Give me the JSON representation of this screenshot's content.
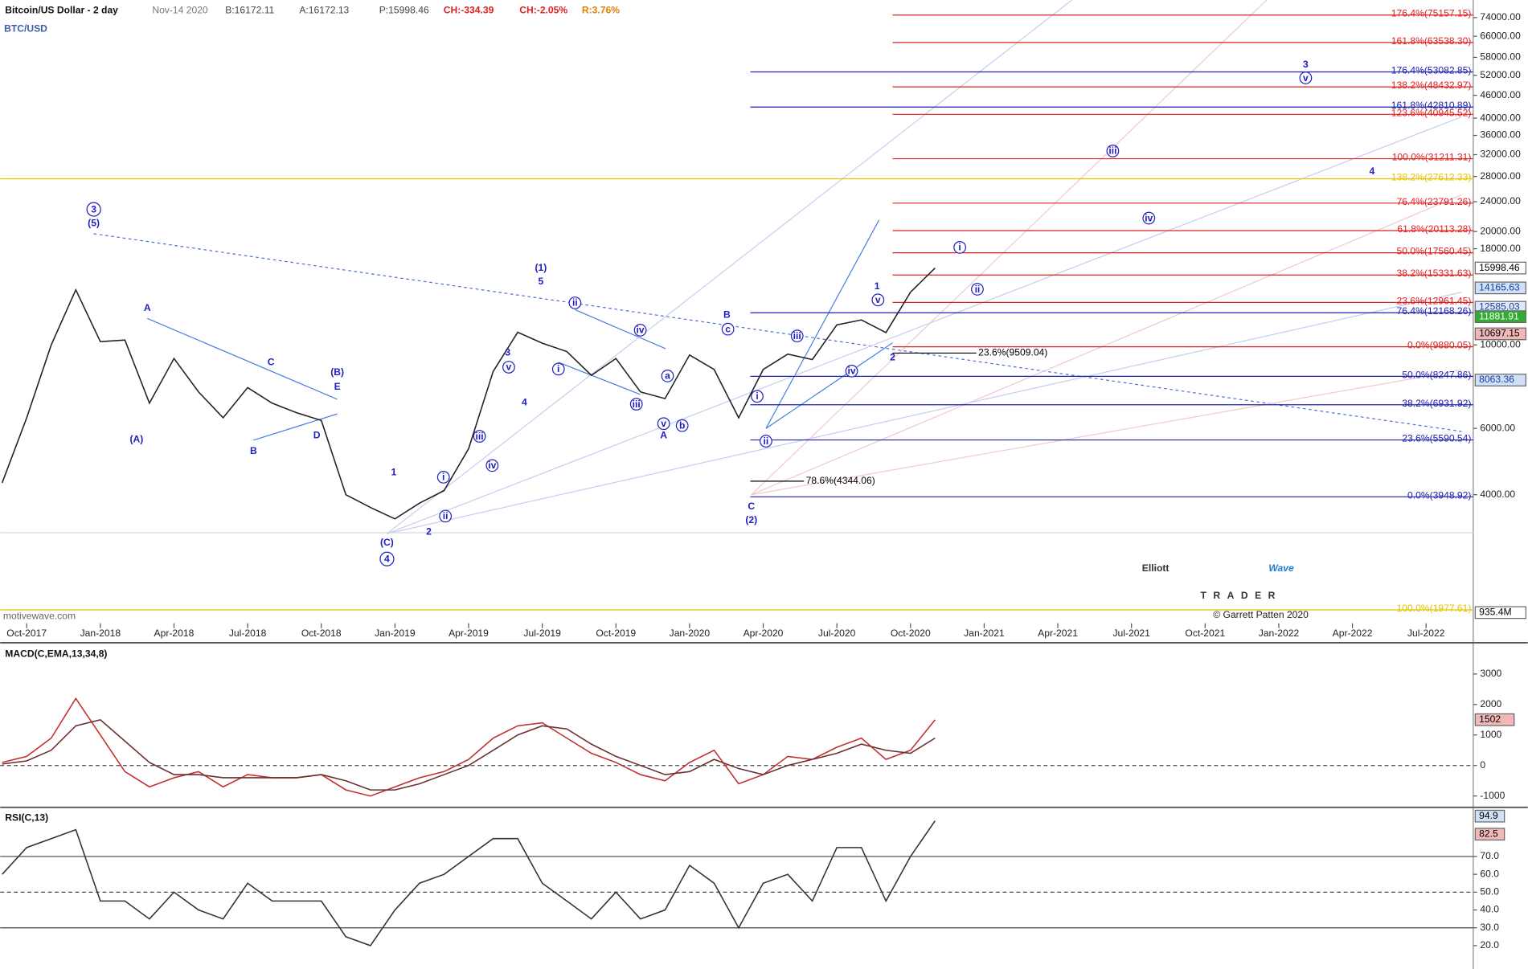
{
  "header": {
    "instrument": "Bitcoin/US Dollar - 2 day",
    "date": "Nov-14 2020",
    "bid": "B:16172.11",
    "ask": "A:16172.13",
    "price": "P:15998.46",
    "change": "CH:-334.39",
    "change_pct": "CH:-2.05%",
    "range": "R:3.76%",
    "symbol": "BTC/USD"
  },
  "watermark": {
    "site": "motivewave.com",
    "logo_word1": "Elliott",
    "logo_word2": "Wave",
    "logo_word3": "TRADER",
    "copyright": "© Garrett Patten 2020"
  },
  "chart_data": [
    {
      "type": "line",
      "log_scale": true,
      "categories": [
        null,
        "Oct-2017",
        null,
        null,
        "Jan-2018",
        null,
        null,
        "Apr-2018",
        null,
        null,
        "Jul-2018",
        null,
        null,
        "Oct-2018",
        null,
        null,
        "Jan-2019",
        null,
        null,
        "Apr-2019",
        null,
        null,
        "Jul-2019",
        null,
        null,
        "Oct-2019",
        null,
        null,
        "Jan-2020",
        null,
        null,
        "Apr-2020",
        null,
        null,
        "Jul-2020",
        null,
        null,
        "Oct-2020",
        null,
        null,
        "Jan-2021",
        null,
        null,
        "Apr-2021",
        null,
        null,
        "Jul-2021",
        null,
        null,
        "Oct-2021",
        null,
        null,
        "Jan-2022",
        null,
        null,
        "Apr-2022",
        null,
        null,
        "Jul-2022",
        null,
        null
      ],
      "series": [
        {
          "color": "#222222",
          "values": [
            4300,
            6400,
            10000,
            14000,
            10200,
            10300,
            7000,
            9200,
            7500,
            6400,
            7700,
            7000,
            6600,
            6300,
            4000,
            3700,
            3450,
            3800,
            4100,
            5300,
            8500,
            10800,
            10100,
            9600,
            8300,
            9200,
            7500,
            7200,
            9400,
            8600,
            6400,
            8600,
            9450,
            9140,
            11300,
            11650,
            10780,
            13800,
            16000,
            null,
            null,
            null,
            null,
            null,
            null,
            null,
            null,
            null,
            null,
            null,
            null,
            null,
            null,
            null,
            null,
            null,
            null,
            null,
            null,
            null,
            null
          ]
        }
      ],
      "ylim": [
        1822,
        82400
      ],
      "yticks": [
        {
          "value": 74000,
          "label": "74000.00"
        },
        {
          "value": 66000,
          "label": "66000.00"
        },
        {
          "value": 58000,
          "label": "58000.00"
        },
        {
          "value": 52000,
          "label": "52000.00"
        },
        {
          "value": 46000,
          "label": "46000.00"
        },
        {
          "value": 40000,
          "label": "40000.00"
        },
        {
          "value": 36000,
          "label": "36000.00"
        },
        {
          "value": 32000,
          "label": "32000.00"
        },
        {
          "value": 28000,
          "label": "28000.00"
        },
        {
          "value": 24000,
          "label": "24000.00"
        },
        {
          "value": 20000,
          "label": "20000.00"
        },
        {
          "value": 18000,
          "label": "18000.00"
        },
        {
          "value": 10000,
          "label": "10000.00"
        },
        {
          "value": 6000,
          "label": "6000.00"
        },
        {
          "value": 4000,
          "label": "4000.00"
        }
      ],
      "grid": false,
      "price_tags": [
        {
          "value": 15998.46,
          "bg": "#ffffff",
          "color": "#000000"
        },
        {
          "value": 14165.63,
          "bg": "#cfe0f7",
          "color": "#1a3d9a"
        },
        {
          "value": 12585.03,
          "bg": "#dfe9fb",
          "color": "#1a3d9a"
        },
        {
          "value": 11881.91,
          "bg": "#33aa33",
          "color": "#ffffff"
        },
        {
          "value": 10697.15,
          "bg": "#f2b8b8",
          "color": "#000000"
        },
        {
          "value": 8063.36,
          "bg": "#cfe0f7",
          "color": "#1a3d9a"
        }
      ],
      "volume_tag": "935.4M",
      "fib_levels": [
        {
          "value": 75157.15,
          "label": "176.4%(75157.15)",
          "color": "#e02020"
        },
        {
          "value": 63538.3,
          "label": "161.8%(63538.30)",
          "color": "#e02020"
        },
        {
          "value": 53082.85,
          "label": "176.4%(53082.85)",
          "color": "#2020b0"
        },
        {
          "value": 48432.97,
          "label": "138.2%(48432.97)",
          "color": "#e02020"
        },
        {
          "value": 42810.89,
          "label": "161.8%(42810.89)",
          "color": "#2020b0"
        },
        {
          "value": 40945.52,
          "label": "123.6%(40945.52)",
          "color": "#e02020"
        },
        {
          "value": 31211.31,
          "label": "100.0%(31211.31)",
          "color": "#e02020"
        },
        {
          "value": 27612.33,
          "label": "138.2%(27612.33)",
          "color": "#e6c200"
        },
        {
          "value": 23791.26,
          "label": "76.4%(23791.26)",
          "color": "#e02020"
        },
        {
          "value": 20113.28,
          "label": "61.8%(20113.28)",
          "color": "#e02020"
        },
        {
          "value": 17560.45,
          "label": "50.0%(17560.45)",
          "color": "#e02020"
        },
        {
          "value": 15331.63,
          "label": "38.2%(15331.63)",
          "color": "#e02020"
        },
        {
          "value": 12961.45,
          "label": "23.6%(12961.45)",
          "color": "#e02020"
        },
        {
          "value": 12168.26,
          "label": "76.4%(12168.26)",
          "color": "#2020b0"
        },
        {
          "value": 9880.05,
          "label": "0.0%(9880.05)",
          "color": "#e02020"
        },
        {
          "value": 9509.04,
          "label": "23.6%(9509.04)",
          "color": "#000000"
        },
        {
          "value": 8247.86,
          "label": "50.0%(8247.86)",
          "color": "#2020b0"
        },
        {
          "value": 6931.92,
          "label": "38.2%(6931.92)",
          "color": "#2020b0"
        },
        {
          "value": 5590.54,
          "label": "23.6%(5590.54)",
          "color": "#2020b0"
        },
        {
          "value": 4344.06,
          "label": "78.6%(4344.06)",
          "color": "#000000"
        },
        {
          "value": 3948.92,
          "label": "0.0%(3948.92)",
          "color": "#2020b0"
        },
        {
          "value": 1977.61,
          "label": "100.0%(1977.61)",
          "color": "#e6c200"
        }
      ],
      "wave_labels": [
        "3",
        "(5)",
        "A",
        "(A)",
        "B",
        "C",
        "D",
        "E",
        "(B)",
        "(C)",
        "4",
        "1",
        "2",
        "i",
        "ii",
        "iii",
        "iv",
        "v",
        "3",
        "4",
        "(1)",
        "5",
        "i",
        "ii",
        "iii",
        "iv",
        "a",
        "v",
        "b",
        "A",
        "c",
        "B",
        "i",
        "ii",
        "C",
        "(2)",
        "iii",
        "iv",
        "1",
        "v",
        "2",
        "i",
        "ii",
        "iv",
        "iii",
        "4",
        "3",
        "v"
      ]
    },
    {
      "type": "line",
      "title": "MACD(C,EMA,13,34,8)",
      "series": [
        {
          "color": "#c03030",
          "values": [
            100,
            300,
            900,
            2200,
            1000,
            -200,
            -700,
            -400,
            -200,
            -700,
            -300,
            -400,
            -400,
            -300,
            -800,
            -1000,
            -700,
            -400,
            -200,
            200,
            900,
            1300,
            1400,
            900,
            400,
            100,
            -300,
            -500,
            100,
            500,
            -600,
            -300,
            300,
            200,
            600,
            900,
            200,
            500,
            1500,
            null,
            null,
            null,
            null,
            null,
            null,
            null,
            null,
            null,
            null,
            null,
            null,
            null,
            null,
            null,
            null,
            null,
            null,
            null,
            null,
            null,
            null
          ]
        },
        {
          "color": "#6a3030",
          "values": [
            50,
            150,
            500,
            1300,
            1500,
            800,
            100,
            -300,
            -300,
            -400,
            -400,
            -400,
            -400,
            -300,
            -500,
            -800,
            -800,
            -600,
            -300,
            0,
            500,
            1000,
            1300,
            1200,
            700,
            300,
            0,
            -300,
            -200,
            200,
            -100,
            -300,
            0,
            200,
            400,
            700,
            500,
            400,
            900,
            null,
            null,
            null,
            null,
            null,
            null,
            null,
            null,
            null,
            null,
            null,
            null,
            null,
            null,
            null,
            null,
            null,
            null,
            null,
            null,
            null,
            null
          ]
        }
      ],
      "ylim": [
        -1340,
        3930
      ],
      "yticks": [
        3000,
        2000,
        1000,
        0,
        -1000
      ],
      "last_tag": 1502
    },
    {
      "type": "line",
      "title": "RSI(C,13)",
      "series": [
        {
          "color": "#333333",
          "values": [
            60,
            75,
            80,
            85,
            45,
            45,
            35,
            50,
            40,
            35,
            55,
            45,
            45,
            45,
            25,
            20,
            40,
            55,
            60,
            70,
            80,
            80,
            55,
            45,
            35,
            50,
            35,
            40,
            65,
            55,
            30,
            55,
            60,
            45,
            75,
            75,
            45,
            70,
            90,
            null,
            null,
            null,
            null,
            null,
            null,
            null,
            null,
            null,
            null,
            null,
            null,
            null,
            null,
            null,
            null,
            null,
            null,
            null,
            null,
            null,
            null
          ]
        }
      ],
      "ylim": [
        8,
        97
      ],
      "yticks": [
        {
          "value": 70,
          "label": "70.0"
        },
        {
          "value": 60,
          "label": "60.0"
        },
        {
          "value": 50,
          "label": "50.0"
        },
        {
          "value": 40,
          "label": "40.0"
        },
        {
          "value": 30,
          "label": "30.0"
        },
        {
          "value": 20,
          "label": "20.0"
        }
      ],
      "levels": [
        70,
        50,
        30
      ],
      "last_tags": [
        94.9,
        82.5
      ]
    }
  ]
}
